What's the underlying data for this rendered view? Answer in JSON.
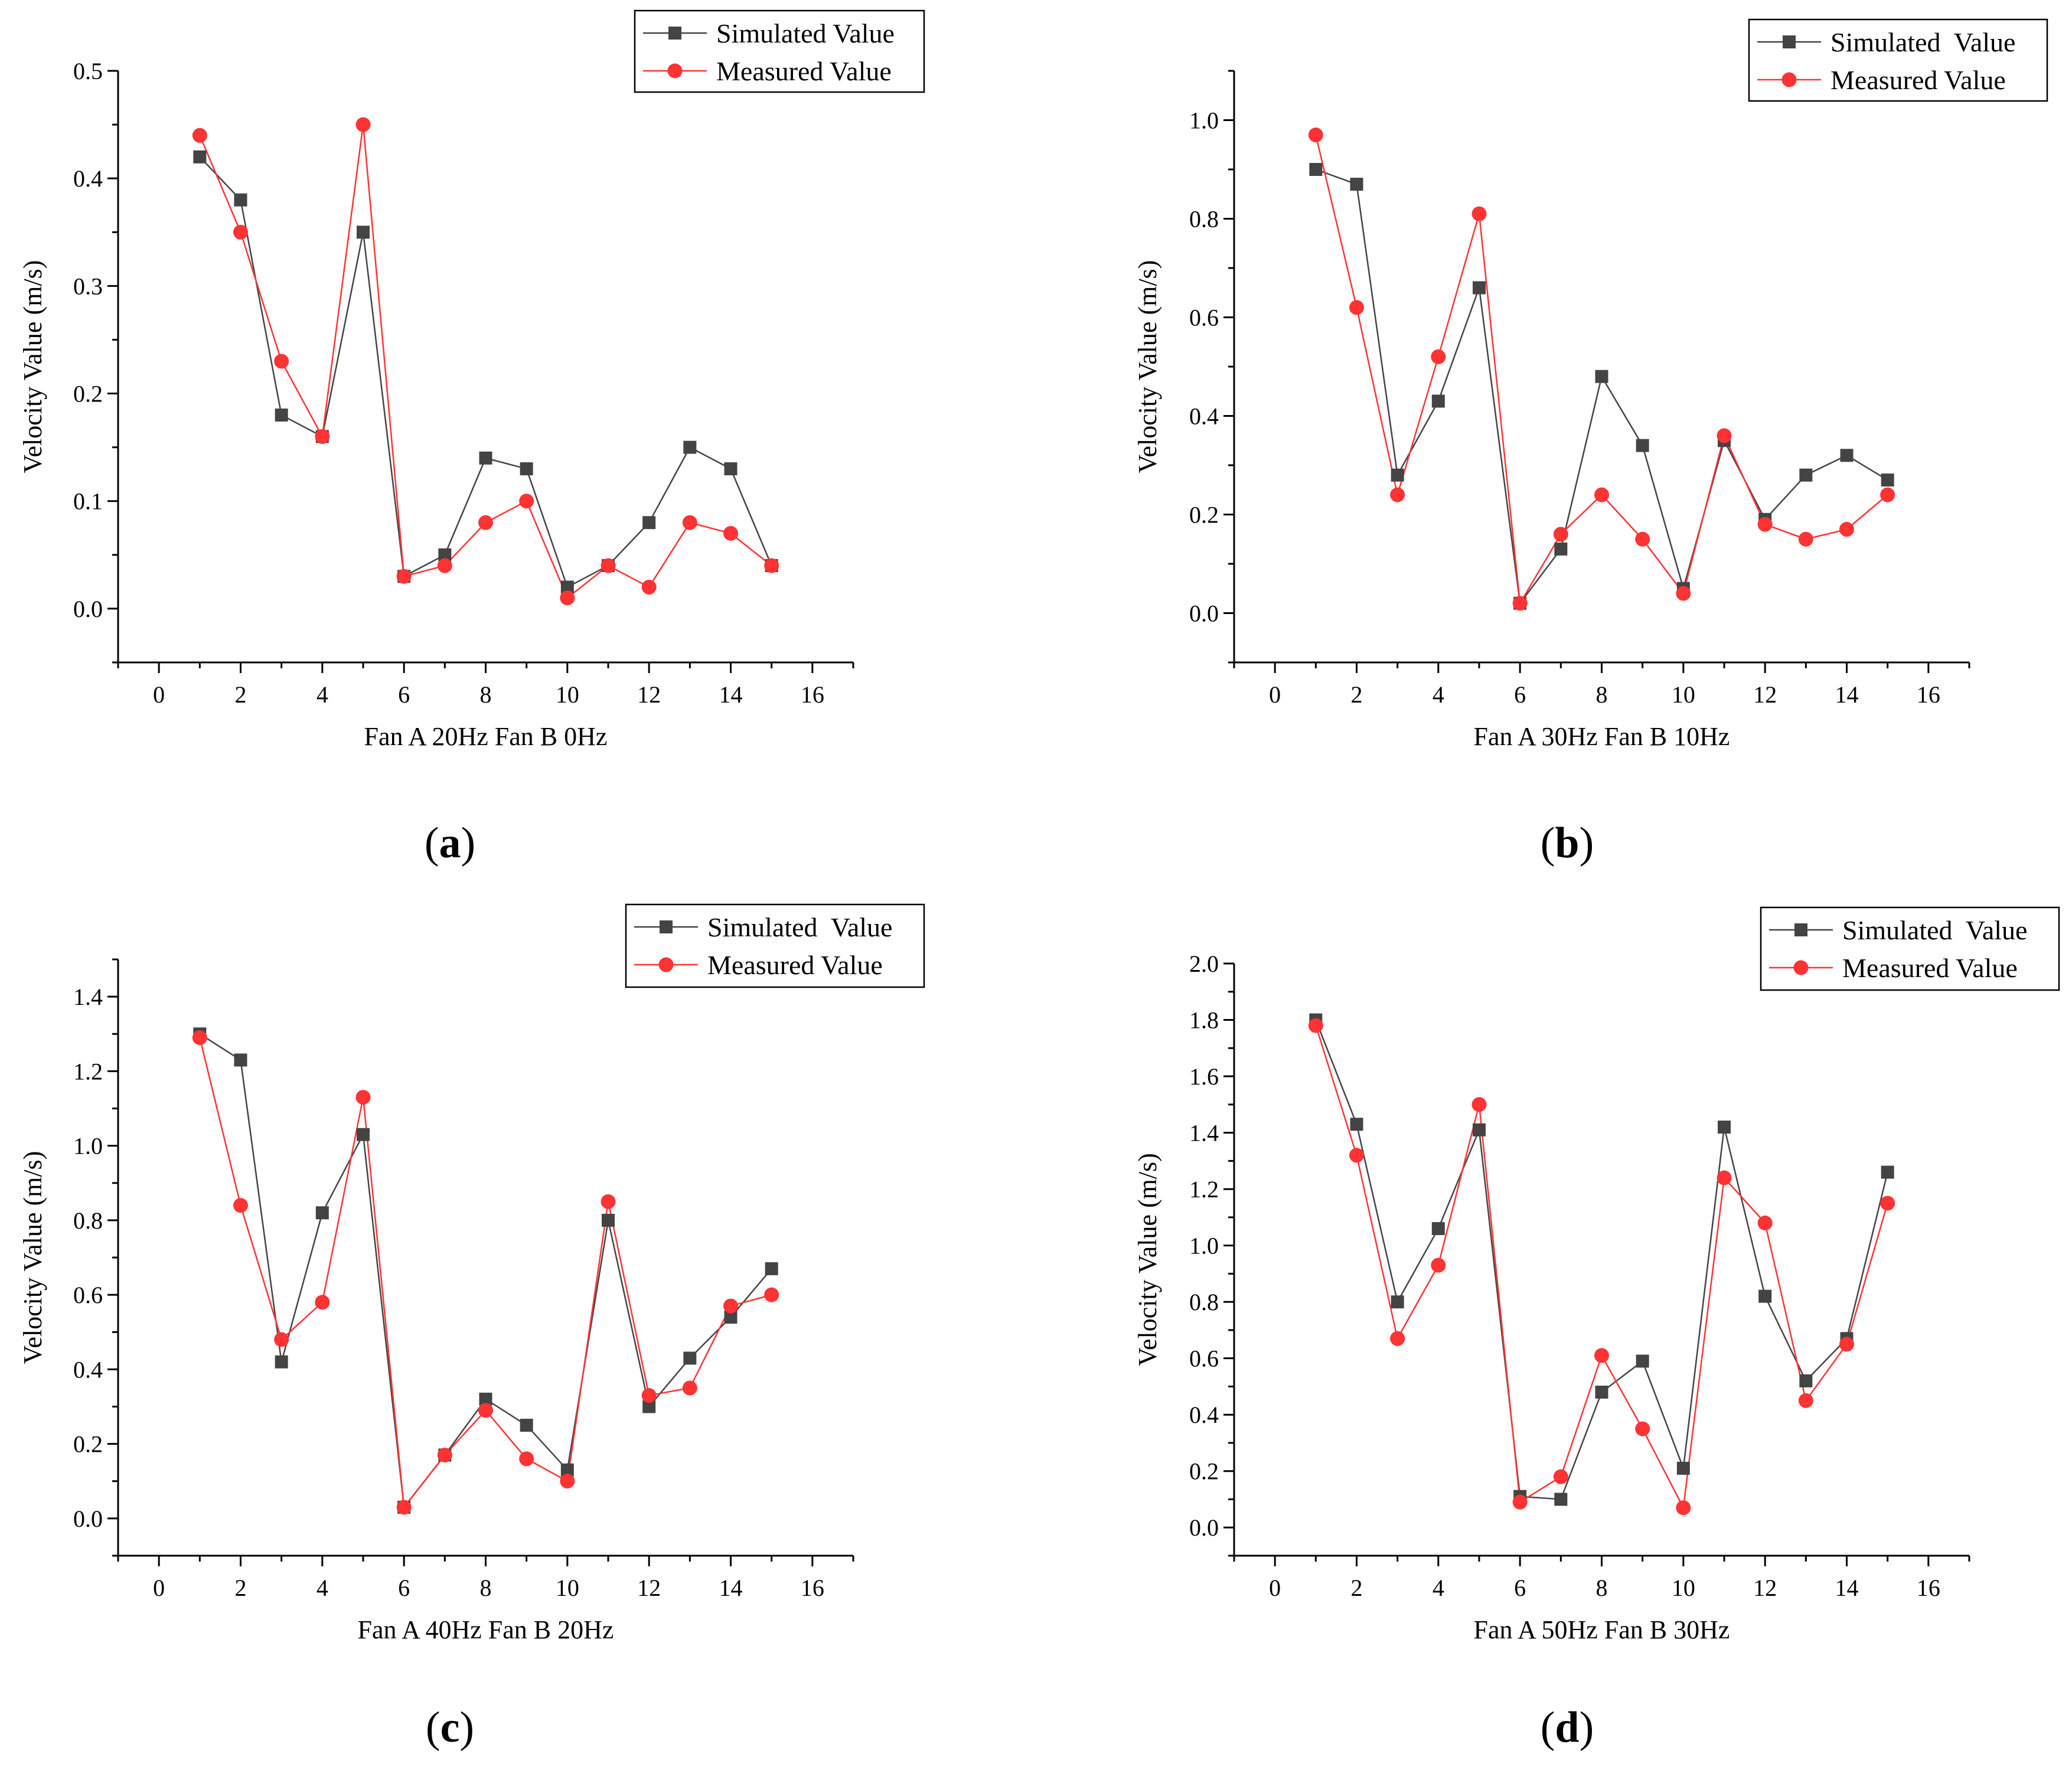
{
  "figure": {
    "colors": {
      "simulated": "#444444",
      "measured": "#ff3333",
      "axis": "#000000"
    },
    "ylabel": "Velocity Value (m/s)"
  },
  "chart_data": [
    {
      "type": "line",
      "panel": "a",
      "xlabel": "Fan A 20Hz Fan B 0Hz",
      "ylabel": "Velocity Value (m/s)",
      "xlim": [
        -1,
        17
      ],
      "ylim": [
        -0.05,
        0.5
      ],
      "xticks": [
        0,
        2,
        4,
        6,
        8,
        10,
        12,
        14,
        16
      ],
      "yticks": [
        0.0,
        0.1,
        0.2,
        0.3,
        0.4,
        0.5
      ],
      "ytick_labels": [
        "0.0",
        "0.1",
        "0.2",
        "0.3",
        "0.4",
        "0.5"
      ],
      "x": [
        1,
        2,
        3,
        4,
        5,
        6,
        7,
        8,
        9,
        10,
        11,
        12,
        13,
        14,
        15
      ],
      "series": [
        {
          "name": "Simulated Value",
          "marker": "square",
          "values": [
            0.42,
            0.38,
            0.18,
            0.16,
            0.35,
            0.03,
            0.05,
            0.14,
            0.13,
            0.02,
            0.04,
            0.08,
            0.15,
            0.13,
            0.04
          ]
        },
        {
          "name": "Measured Value",
          "marker": "circle",
          "values": [
            0.44,
            0.35,
            0.23,
            0.16,
            0.45,
            0.03,
            0.04,
            0.08,
            0.1,
            0.01,
            0.04,
            0.02,
            0.08,
            0.07,
            0.04
          ]
        }
      ],
      "legend": [
        "Simulated Value",
        "Measured Value"
      ],
      "legend_position": "top-right",
      "grid": false
    },
    {
      "type": "line",
      "panel": "b",
      "xlabel": "Fan A 30Hz Fan B 10Hz",
      "ylabel": "Velocity Value (m/s)",
      "xlim": [
        -1,
        17
      ],
      "ylim": [
        -0.1,
        1.1
      ],
      "xticks": [
        0,
        2,
        4,
        6,
        8,
        10,
        12,
        14,
        16
      ],
      "yticks": [
        0.0,
        0.2,
        0.4,
        0.6,
        0.8,
        1.0
      ],
      "ytick_labels": [
        "0.0",
        "0.2",
        "0.4",
        "0.6",
        "0.8",
        "1.0"
      ],
      "x": [
        1,
        2,
        3,
        4,
        5,
        6,
        7,
        8,
        9,
        10,
        11,
        12,
        13,
        14,
        15
      ],
      "series": [
        {
          "name": "Simulated Value",
          "marker": "square",
          "values": [
            0.9,
            0.87,
            0.28,
            0.43,
            0.66,
            0.02,
            0.13,
            0.48,
            0.34,
            0.05,
            0.35,
            0.19,
            0.28,
            0.32,
            0.27
          ]
        },
        {
          "name": "Measured Value",
          "marker": "circle",
          "values": [
            0.97,
            0.62,
            0.24,
            0.52,
            0.81,
            0.02,
            0.16,
            0.24,
            0.15,
            0.04,
            0.36,
            0.18,
            0.15,
            0.17,
            0.24
          ]
        }
      ],
      "legend": [
        "Simulated  Value",
        "Measured Value"
      ],
      "legend_position": "top-right",
      "grid": false
    },
    {
      "type": "line",
      "panel": "c",
      "xlabel": "Fan A 40Hz Fan B 20Hz",
      "ylabel": "Velocity Value (m/s)",
      "xlim": [
        -1,
        17
      ],
      "ylim": [
        -0.1,
        1.5
      ],
      "xticks": [
        0,
        2,
        4,
        6,
        8,
        10,
        12,
        14,
        16
      ],
      "yticks": [
        0.0,
        0.2,
        0.4,
        0.6,
        0.8,
        1.0,
        1.2,
        1.4
      ],
      "ytick_labels": [
        "0.0",
        "0.2",
        "0.4",
        "0.6",
        "0.8",
        "1.0",
        "1.2",
        "1.4"
      ],
      "x": [
        1,
        2,
        3,
        4,
        5,
        6,
        7,
        8,
        9,
        10,
        11,
        12,
        13,
        14,
        15
      ],
      "series": [
        {
          "name": "Simulated Value",
          "marker": "square",
          "values": [
            1.3,
            1.23,
            0.42,
            0.82,
            1.03,
            0.03,
            0.17,
            0.32,
            0.25,
            0.13,
            0.8,
            0.3,
            0.43,
            0.54,
            0.67
          ]
        },
        {
          "name": "Measured Value",
          "marker": "circle",
          "values": [
            1.29,
            0.84,
            0.48,
            0.58,
            1.13,
            0.03,
            0.17,
            0.29,
            0.16,
            0.1,
            0.85,
            0.33,
            0.35,
            0.57,
            0.6
          ]
        }
      ],
      "legend": [
        "Simulated  Value",
        "Measured Value"
      ],
      "legend_position": "top-right",
      "grid": false
    },
    {
      "type": "line",
      "panel": "d",
      "xlabel": "Fan A 50Hz Fan B 30Hz",
      "ylabel": "Velocity Value (m/s)",
      "xlim": [
        -1,
        17
      ],
      "ylim": [
        -0.1,
        2.0
      ],
      "xticks": [
        0,
        2,
        4,
        6,
        8,
        10,
        12,
        14,
        16
      ],
      "yticks": [
        0.0,
        0.2,
        0.4,
        0.6,
        0.8,
        1.0,
        1.2,
        1.4,
        1.6,
        1.8,
        2.0
      ],
      "ytick_labels": [
        "0.0",
        "0.2",
        "0.4",
        "0.6",
        "0.8",
        "1.0",
        "1.2",
        "1.4",
        "1.6",
        "1.8",
        "2.0"
      ],
      "x": [
        1,
        2,
        3,
        4,
        5,
        6,
        7,
        8,
        9,
        10,
        11,
        12,
        13,
        14,
        15
      ],
      "series": [
        {
          "name": "Simulated Value",
          "marker": "square",
          "values": [
            1.8,
            1.43,
            0.8,
            1.06,
            1.41,
            0.11,
            0.1,
            0.48,
            0.59,
            0.21,
            1.42,
            0.82,
            0.52,
            0.67,
            1.26
          ]
        },
        {
          "name": "Measured Value",
          "marker": "circle",
          "values": [
            1.78,
            1.32,
            0.67,
            0.93,
            1.5,
            0.09,
            0.18,
            0.61,
            0.35,
            0.07,
            1.24,
            1.08,
            0.45,
            0.65,
            1.15
          ]
        }
      ],
      "legend": [
        "Simulated  Value",
        "Measured Value"
      ],
      "legend_position": "top-right",
      "grid": false
    }
  ],
  "panel_labels": [
    {
      "open": "(",
      "letter": "a",
      "close": ")"
    },
    {
      "open": "(",
      "letter": "b",
      "close": ")"
    },
    {
      "open": "(",
      "letter": "c",
      "close": ")"
    },
    {
      "open": "(",
      "letter": "d",
      "close": ")"
    }
  ]
}
